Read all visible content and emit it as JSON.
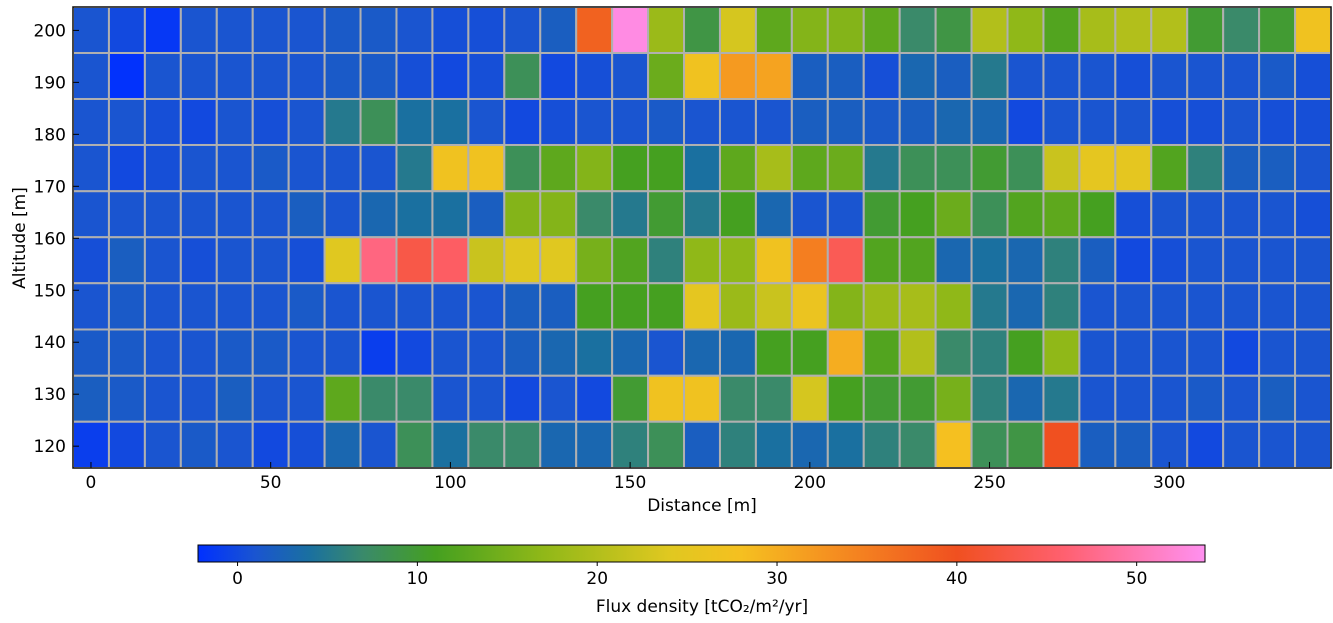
{
  "chart_data": {
    "type": "heatmap",
    "xlabel": "Distance [m]",
    "ylabel": "Altitude [m]",
    "x": [
      0,
      10,
      20,
      30,
      40,
      50,
      60,
      70,
      80,
      90,
      100,
      110,
      120,
      130,
      140,
      150,
      160,
      170,
      180,
      190,
      200,
      210,
      220,
      230,
      240,
      250,
      260,
      270,
      280,
      290,
      300,
      310,
      320,
      330,
      340
    ],
    "y": [
      200.1,
      191.2,
      182.4,
      173.5,
      164.6,
      155.8,
      146.9,
      138.0,
      129.1,
      120.3
    ],
    "xlim": [
      -5,
      345
    ],
    "ylim": [
      115.8,
      204.5
    ],
    "xticks": [
      0,
      50,
      100,
      150,
      200,
      250,
      300
    ],
    "yticks": [
      120,
      130,
      140,
      150,
      160,
      170,
      180,
      190,
      200
    ],
    "z": [
      [
        1,
        0,
        -1.5,
        1,
        1,
        1,
        1,
        1.5,
        1.5,
        1,
        0.5,
        0.5,
        1,
        2,
        38,
        53,
        18,
        9,
        23,
        13,
        16,
        16,
        13,
        7,
        9,
        20,
        17,
        12,
        19,
        20,
        20,
        10,
        7,
        10,
        27
      ],
      [
        1,
        -2,
        1,
        1,
        1,
        1,
        1,
        1.5,
        1.5,
        0.5,
        0,
        0.5,
        8,
        0,
        0.5,
        1,
        14,
        27,
        32,
        31,
        2,
        2,
        0.5,
        3,
        2,
        5,
        1,
        1,
        1,
        0.5,
        1,
        1,
        1,
        1.5,
        0.5
      ],
      [
        1,
        1,
        0.5,
        0,
        1,
        0.5,
        1,
        5,
        8,
        4,
        4,
        1,
        0,
        0.5,
        1,
        1,
        1.5,
        1,
        1,
        1,
        2,
        2,
        1.5,
        2,
        3,
        3,
        0,
        1,
        1,
        1,
        0.5,
        0.5,
        1,
        0.5,
        0.5
      ],
      [
        1,
        0,
        0.5,
        1,
        1,
        1.5,
        1,
        1,
        1,
        5,
        27,
        27,
        8,
        13,
        16,
        11,
        11,
        4,
        13,
        19,
        13,
        14,
        5,
        8,
        8,
        10,
        8,
        22,
        25,
        25,
        12,
        6,
        2,
        2,
        1
      ],
      [
        1,
        1,
        1,
        1,
        1,
        1,
        2,
        1,
        3,
        4,
        4,
        2,
        16,
        16,
        7,
        5,
        10,
        5,
        11,
        3,
        1,
        1,
        10,
        11,
        14,
        8,
        12,
        13,
        11,
        0.5,
        1,
        1,
        1,
        1,
        0.5
      ],
      [
        0.5,
        2,
        1,
        0.5,
        1,
        1,
        0.5,
        24,
        47,
        43,
        45,
        22,
        24,
        24,
        15,
        12,
        6,
        17,
        17,
        27,
        35,
        44,
        12,
        12,
        3,
        4,
        3,
        6,
        2,
        0,
        0.5,
        1,
        1,
        1,
        1
      ],
      [
        1,
        1.5,
        1,
        1,
        1,
        1,
        1.5,
        1,
        1,
        1,
        1,
        1,
        2,
        2,
        11,
        11,
        11,
        25,
        18,
        22,
        26,
        16,
        18,
        19,
        17,
        5,
        3,
        6,
        1,
        1,
        1,
        1,
        1,
        1,
        1
      ],
      [
        1.5,
        1.5,
        1,
        1,
        1.5,
        1.5,
        1,
        1,
        -1,
        0,
        1,
        1,
        2,
        3,
        4,
        3,
        1,
        3,
        3,
        11,
        11,
        30,
        12,
        20,
        7,
        6,
        11,
        17,
        1,
        1,
        1,
        1,
        0,
        1,
        1
      ],
      [
        2,
        1.5,
        1,
        1,
        2,
        1,
        1,
        13,
        7,
        7,
        1,
        1,
        0,
        1,
        0,
        10,
        27,
        27,
        7,
        7,
        23,
        11,
        10,
        10,
        15,
        6,
        3,
        5,
        1,
        1,
        1,
        1.5,
        1,
        2,
        1
      ],
      [
        -1,
        0,
        1,
        1.5,
        1,
        0,
        0.5,
        3,
        1,
        8,
        4,
        7,
        7,
        3,
        3,
        6,
        8,
        2,
        6,
        4,
        3,
        4,
        6,
        7,
        28,
        8,
        9,
        40,
        2,
        2,
        1,
        0,
        1,
        1,
        1
      ]
    ],
    "clim": [
      -2.2,
      53.8
    ],
    "colorbar_ticks": [
      0,
      10,
      20,
      30,
      40,
      50
    ],
    "colorbar_label": "Flux density [tCO₂/m²/yr]",
    "colormap": [
      [
        -2.2,
        "#0030ff"
      ],
      [
        1,
        "#1a55d0"
      ],
      [
        4,
        "#1a70a0"
      ],
      [
        7,
        "#3a8a6a"
      ],
      [
        11,
        "#45a020"
      ],
      [
        17,
        "#90b818"
      ],
      [
        24,
        "#e0c820"
      ],
      [
        28,
        "#f5c020"
      ],
      [
        33,
        "#f59020"
      ],
      [
        40,
        "#f05020"
      ],
      [
        46,
        "#ff6070"
      ],
      [
        53.8,
        "#ff90f0"
      ]
    ],
    "grid_color": "#b0b0b0"
  }
}
